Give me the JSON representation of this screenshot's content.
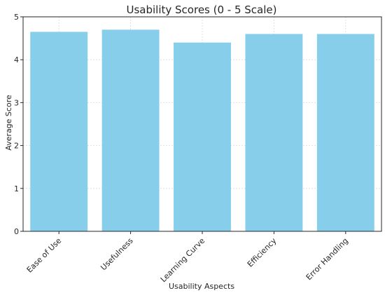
{
  "chart_data": {
    "type": "bar",
    "title": "Usability Scores (0 - 5 Scale)",
    "xlabel": "Usability Aspects",
    "ylabel": "Average Score",
    "categories": [
      "Ease of Use",
      "Usefulness",
      "Learning Curve",
      "Efficiency",
      "Error Handling"
    ],
    "values": [
      4.65,
      4.7,
      4.4,
      4.6,
      4.6
    ],
    "ylim": [
      0,
      5
    ],
    "yticks": [
      0,
      1,
      2,
      3,
      4,
      5
    ],
    "grid": true,
    "bar_color": "#87CEEB"
  }
}
